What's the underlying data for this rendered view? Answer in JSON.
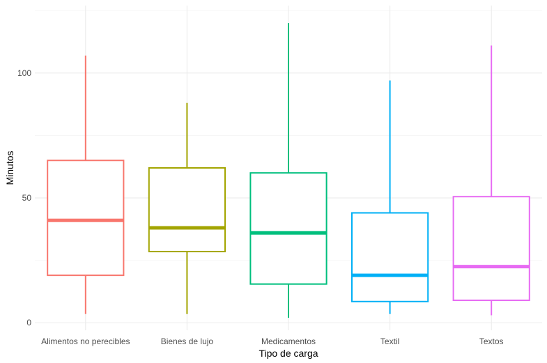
{
  "chart_data": {
    "type": "boxplot",
    "title": "",
    "xlabel": "Tipo de carga",
    "ylabel": "Minutos",
    "ylim": [
      -3,
      127
    ],
    "y_ticks": [
      0,
      50,
      100
    ],
    "grid": true,
    "legend": "none",
    "categories": [
      "Alimentos no perecibles",
      "Bienes de lujo",
      "Medicamentos",
      "Textil",
      "Textos"
    ],
    "series": [
      {
        "category": "Alimentos no perecibles",
        "min": 3.5,
        "q1": 19,
        "median": 41,
        "q3": 65,
        "max": 107,
        "color": "#F8766D"
      },
      {
        "category": "Bienes de lujo",
        "min": 3.5,
        "q1": 28.5,
        "median": 38,
        "q3": 62,
        "max": 88,
        "color": "#A3A500"
      },
      {
        "category": "Medicamentos",
        "min": 2,
        "q1": 15.5,
        "median": 36,
        "q3": 60,
        "max": 120,
        "color": "#00BF7D"
      },
      {
        "category": "Textil",
        "min": 3.5,
        "q1": 8.5,
        "median": 19,
        "q3": 44,
        "max": 97,
        "color": "#00B0F6"
      },
      {
        "category": "Textos",
        "min": 3,
        "q1": 9,
        "median": 22.5,
        "q3": 50.5,
        "max": 111,
        "color": "#E76BF3"
      }
    ]
  }
}
